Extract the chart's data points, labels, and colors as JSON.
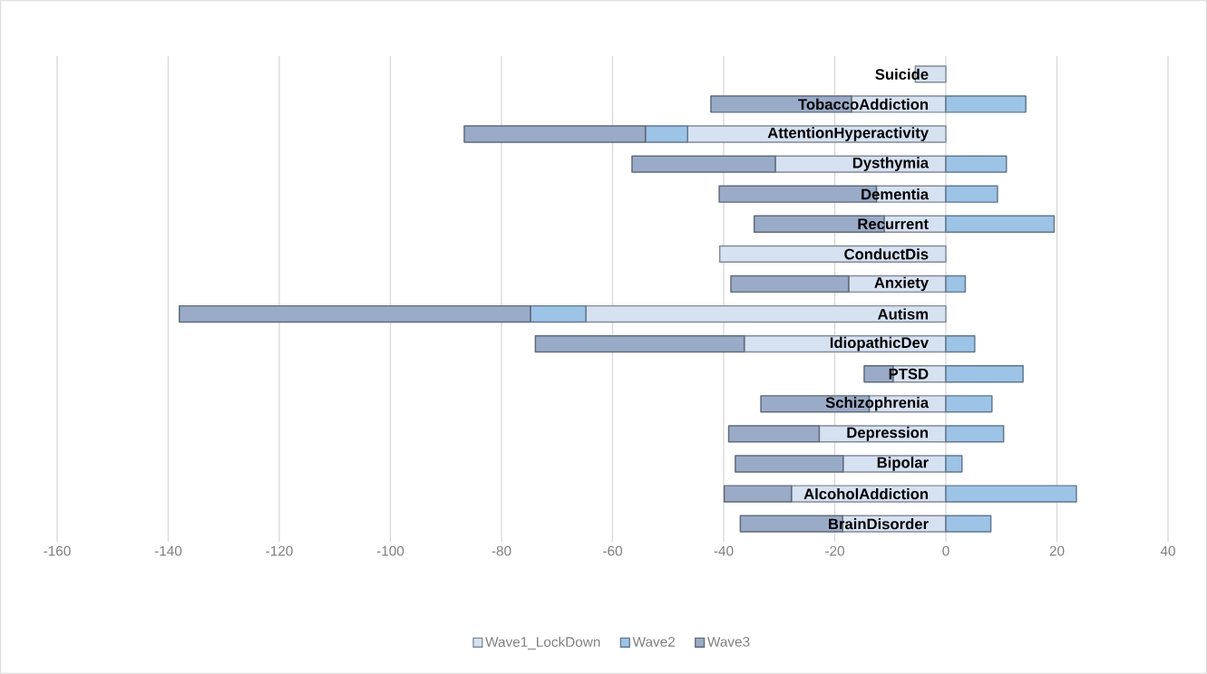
{
  "chart_data": {
    "type": "bar",
    "orientation": "horizontal",
    "stacked": true,
    "categories": [
      "Suicide",
      "TobaccoAddiction",
      "AttentionHyperactivity",
      "Dysthymia",
      "Dementia",
      "Recurrent",
      "ConductDis",
      "Anxiety",
      "Autism",
      "IdiopathicDev",
      "PTSD",
      "Schizophrenia",
      "Depression",
      "Bipolar",
      "AlcoholAddiction",
      "BrainDisorder"
    ],
    "series": [
      {
        "name": "Wave1_LockDown",
        "color": "#d6e1f2",
        "values": [
          -5.5,
          -17,
          -46.5,
          -30.7,
          -12.5,
          -11.1,
          -40.7,
          -17.5,
          -64.8,
          -36.3,
          -9.5,
          -13.8,
          -22.8,
          -18.5,
          -27.8,
          -18.6
        ]
      },
      {
        "name": "Wave2",
        "color": "#9dc3e6",
        "values": [
          null,
          14.4,
          -7.6,
          10.9,
          9.3,
          19.5,
          null,
          3.5,
          -10,
          5.2,
          13.9,
          8.3,
          10.4,
          2.9,
          23.5,
          8.1
        ]
      },
      {
        "name": "Wave3",
        "color": "#9aabc7",
        "values": [
          null,
          -25.3,
          -32.6,
          -25.8,
          -28.3,
          -23.4,
          null,
          -21.2,
          -63.2,
          -37.6,
          -5.2,
          -19.5,
          -16.3,
          -19.4,
          -12.1,
          -18.4
        ]
      }
    ],
    "xlim": [
      -160,
      40
    ],
    "xticks": [
      -160,
      -140,
      -120,
      -100,
      -80,
      -60,
      -40,
      -20,
      0,
      20,
      40
    ],
    "grid": "x",
    "legend": "bottom"
  }
}
